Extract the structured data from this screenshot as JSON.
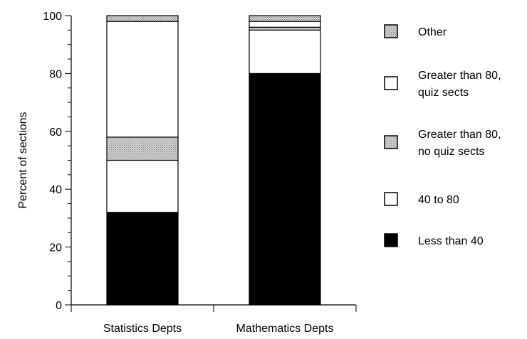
{
  "chart_data": {
    "type": "bar",
    "stacked": true,
    "title": "",
    "xlabel": "",
    "ylabel": "Percent of sections",
    "ylim": [
      0,
      100
    ],
    "yticks": [
      0,
      20,
      40,
      60,
      80,
      100
    ],
    "categories": [
      "Statistics Depts",
      "Mathematics Depts"
    ],
    "series": [
      {
        "name": "Less than 40",
        "values": [
          32,
          80
        ],
        "fill": "#000000"
      },
      {
        "name": "40 to 80",
        "values": [
          18,
          15
        ],
        "fill": "#ffffff"
      },
      {
        "name": "Greater than 80, no quiz sects",
        "values": [
          8,
          1
        ],
        "fill": "#b8b8b8"
      },
      {
        "name": "Greater than 80, quiz sects",
        "values": [
          40,
          2
        ],
        "fill": "#ffffff"
      },
      {
        "name": "Other",
        "values": [
          2,
          2
        ],
        "fill": "#b8b8b8"
      }
    ],
    "legend": {
      "placement": "right",
      "order": [
        "Other",
        "Greater than 80, quiz sects",
        "Greater than 80, no quiz sects",
        "40 to 80",
        "Less than 40"
      ],
      "lines": [
        [
          "Other"
        ],
        [
          "Greater than 80,",
          "quiz sects"
        ],
        [
          "Greater than 80,",
          "no quiz sects"
        ],
        [
          "40 to 80"
        ],
        [
          "Less than 40"
        ]
      ]
    },
    "grid": false
  }
}
